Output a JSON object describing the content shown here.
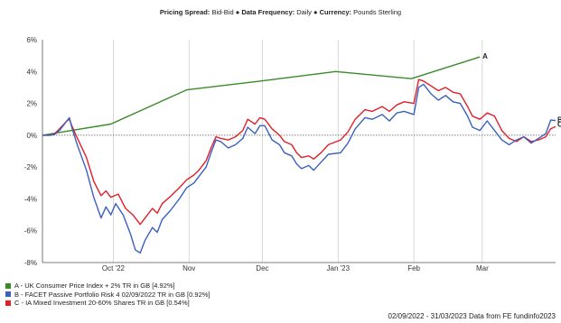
{
  "header": {
    "pricing_label": "Pricing Spread:",
    "pricing_value": "Bid-Bid",
    "sep1": "●",
    "frequency_label": "Data Frequency:",
    "frequency_value": "Daily",
    "sep2": "●",
    "currency_label": "Currency:",
    "currency_value": "Pounds Sterling"
  },
  "footer": {
    "text": "02/09/2022 - 31/03/2023 Data from FE fundinfo2023"
  },
  "colors": {
    "series_a": "#3a8a2a",
    "series_b": "#3a5fc0",
    "series_c": "#e0202a",
    "grid": "#cfcfcf"
  },
  "chart_data": {
    "type": "line",
    "x_type": "date",
    "x_range": [
      "2022-09-02",
      "2023-03-31"
    ],
    "ylim": [
      -8,
      6
    ],
    "ytick_values": [
      -8,
      -6,
      -4,
      -2,
      0,
      2,
      4,
      6
    ],
    "ytick_labels": [
      "-8%",
      "-6%",
      "-4%",
      "-2%",
      "0%",
      "2%",
      "4%",
      "6%"
    ],
    "xticks": [
      {
        "date": "2022-10-01",
        "label": "Oct '22"
      },
      {
        "date": "2022-11-01",
        "label": "Nov"
      },
      {
        "date": "2022-12-01",
        "label": "Dec"
      },
      {
        "date": "2023-01-01",
        "label": "Jan '23"
      },
      {
        "date": "2023-02-01",
        "label": "Feb"
      },
      {
        "date": "2023-03-01",
        "label": "Mar"
      }
    ],
    "grid": "vertical gridlines, dotted zero line",
    "series": [
      {
        "name": "A - UK Consumer Price Index + 2% TR in GB [4.92%]",
        "end_label": "A",
        "color_key": "series_a",
        "points": [
          [
            "2022-09-02",
            0.0
          ],
          [
            "2022-09-10",
            0.2
          ],
          [
            "2022-09-30",
            0.7
          ],
          [
            "2022-10-31",
            2.85
          ],
          [
            "2022-11-30",
            3.4
          ],
          [
            "2022-12-31",
            4.0
          ],
          [
            "2023-01-31",
            3.55
          ],
          [
            "2023-02-28",
            4.92
          ]
        ]
      },
      {
        "name": "B - FACET Passive Portfolio Risk 4 02/09/2022 TR in GB [0.92%]",
        "end_label": "B",
        "color_key": "series_b",
        "points": [
          [
            "2022-09-02",
            0.0
          ],
          [
            "2022-09-05",
            0.0
          ],
          [
            "2022-09-07",
            0.05
          ],
          [
            "2022-09-09",
            0.3
          ],
          [
            "2022-09-12",
            0.9
          ],
          [
            "2022-09-13",
            1.1
          ],
          [
            "2022-09-14",
            0.5
          ],
          [
            "2022-09-16",
            -0.5
          ],
          [
            "2022-09-20",
            -2.2
          ],
          [
            "2022-09-23",
            -3.9
          ],
          [
            "2022-09-26",
            -5.2
          ],
          [
            "2022-09-28",
            -4.5
          ],
          [
            "2022-09-30",
            -5.0
          ],
          [
            "2022-10-02",
            -4.3
          ],
          [
            "2022-10-05",
            -5.0
          ],
          [
            "2022-10-08",
            -6.2
          ],
          [
            "2022-10-10",
            -7.2
          ],
          [
            "2022-10-12",
            -7.4
          ],
          [
            "2022-10-14",
            -6.6
          ],
          [
            "2022-10-17",
            -5.8
          ],
          [
            "2022-10-19",
            -6.1
          ],
          [
            "2022-10-21",
            -5.3
          ],
          [
            "2022-10-24",
            -4.8
          ],
          [
            "2022-10-26",
            -4.4
          ],
          [
            "2022-10-28",
            -4.0
          ],
          [
            "2022-10-31",
            -3.3
          ],
          [
            "2022-11-03",
            -3.0
          ],
          [
            "2022-11-05",
            -2.6
          ],
          [
            "2022-11-08",
            -2.0
          ],
          [
            "2022-11-10",
            -1.1
          ],
          [
            "2022-11-12",
            -0.3
          ],
          [
            "2022-11-14",
            -0.4
          ],
          [
            "2022-11-17",
            -0.8
          ],
          [
            "2022-11-20",
            -0.6
          ],
          [
            "2022-11-23",
            -0.2
          ],
          [
            "2022-11-25",
            0.5
          ],
          [
            "2022-11-28",
            0.1
          ],
          [
            "2022-11-30",
            0.6
          ],
          [
            "2022-12-02",
            0.6
          ],
          [
            "2022-12-05",
            -0.3
          ],
          [
            "2022-12-08",
            -0.6
          ],
          [
            "2022-12-10",
            -1.1
          ],
          [
            "2022-12-13",
            -1.3
          ],
          [
            "2022-12-15",
            -1.8
          ],
          [
            "2022-12-17",
            -2.1
          ],
          [
            "2022-12-20",
            -1.9
          ],
          [
            "2022-12-22",
            -2.2
          ],
          [
            "2022-12-25",
            -1.7
          ],
          [
            "2022-12-28",
            -1.2
          ],
          [
            "2023-01-02",
            -1.1
          ],
          [
            "2023-01-05",
            -0.5
          ],
          [
            "2023-01-08",
            0.4
          ],
          [
            "2023-01-12",
            1.1
          ],
          [
            "2023-01-15",
            1.0
          ],
          [
            "2023-01-19",
            1.3
          ],
          [
            "2023-01-22",
            0.9
          ],
          [
            "2023-01-25",
            1.4
          ],
          [
            "2023-01-28",
            1.5
          ],
          [
            "2023-02-01",
            1.3
          ],
          [
            "2023-02-03",
            3.0
          ],
          [
            "2023-02-05",
            3.2
          ],
          [
            "2023-02-08",
            2.6
          ],
          [
            "2023-02-11",
            2.2
          ],
          [
            "2023-02-14",
            2.5
          ],
          [
            "2023-02-17",
            2.1
          ],
          [
            "2023-02-20",
            2.0
          ],
          [
            "2023-02-23",
            1.2
          ],
          [
            "2023-02-25",
            0.5
          ],
          [
            "2023-02-28",
            0.3
          ],
          [
            "2023-03-03",
            0.9
          ],
          [
            "2023-03-06",
            0.3
          ],
          [
            "2023-03-09",
            -0.3
          ],
          [
            "2023-03-12",
            -0.6
          ],
          [
            "2023-03-15",
            -0.3
          ],
          [
            "2023-03-18",
            -0.1
          ],
          [
            "2023-03-21",
            -0.5
          ],
          [
            "2023-03-24",
            -0.2
          ],
          [
            "2023-03-27",
            0.1
          ],
          [
            "2023-03-29",
            0.95
          ],
          [
            "2023-03-31",
            0.92
          ]
        ]
      },
      {
        "name": "C - IA Mixed Investment 20-60% Shares TR in GB [0.54%]",
        "end_label": "C",
        "color_key": "series_c",
        "points": [
          [
            "2022-09-02",
            0.0
          ],
          [
            "2022-09-05",
            0.0
          ],
          [
            "2022-09-07",
            0.1
          ],
          [
            "2022-09-09",
            0.4
          ],
          [
            "2022-09-12",
            0.9
          ],
          [
            "2022-09-13",
            1.0
          ],
          [
            "2022-09-14",
            0.6
          ],
          [
            "2022-09-16",
            -0.1
          ],
          [
            "2022-09-20",
            -1.4
          ],
          [
            "2022-09-23",
            -2.9
          ],
          [
            "2022-09-26",
            -3.8
          ],
          [
            "2022-09-28",
            -3.5
          ],
          [
            "2022-09-30",
            -3.9
          ],
          [
            "2022-10-03",
            -3.7
          ],
          [
            "2022-10-06",
            -4.6
          ],
          [
            "2022-10-09",
            -5.0
          ],
          [
            "2022-10-12",
            -5.6
          ],
          [
            "2022-10-14",
            -5.2
          ],
          [
            "2022-10-17",
            -4.6
          ],
          [
            "2022-10-19",
            -4.9
          ],
          [
            "2022-10-21",
            -4.3
          ],
          [
            "2022-10-24",
            -3.9
          ],
          [
            "2022-10-26",
            -3.6
          ],
          [
            "2022-10-28",
            -3.3
          ],
          [
            "2022-10-31",
            -2.8
          ],
          [
            "2022-11-03",
            -2.5
          ],
          [
            "2022-11-05",
            -2.2
          ],
          [
            "2022-11-08",
            -1.6
          ],
          [
            "2022-11-10",
            -0.8
          ],
          [
            "2022-11-12",
            -0.1
          ],
          [
            "2022-11-14",
            -0.2
          ],
          [
            "2022-11-17",
            -0.3
          ],
          [
            "2022-11-20",
            -0.1
          ],
          [
            "2022-11-23",
            0.3
          ],
          [
            "2022-11-25",
            1.0
          ],
          [
            "2022-11-28",
            0.7
          ],
          [
            "2022-11-30",
            1.1
          ],
          [
            "2022-12-02",
            1.0
          ],
          [
            "2022-12-05",
            0.4
          ],
          [
            "2022-12-08",
            0.0
          ],
          [
            "2022-12-10",
            -0.4
          ],
          [
            "2022-12-13",
            -0.6
          ],
          [
            "2022-12-15",
            -1.1
          ],
          [
            "2022-12-17",
            -1.4
          ],
          [
            "2022-12-20",
            -1.3
          ],
          [
            "2022-12-22",
            -1.5
          ],
          [
            "2022-12-25",
            -1.1
          ],
          [
            "2022-12-28",
            -0.6
          ],
          [
            "2023-01-02",
            -0.3
          ],
          [
            "2023-01-05",
            0.2
          ],
          [
            "2023-01-08",
            1.0
          ],
          [
            "2023-01-12",
            1.6
          ],
          [
            "2023-01-15",
            1.5
          ],
          [
            "2023-01-19",
            1.8
          ],
          [
            "2023-01-22",
            1.5
          ],
          [
            "2023-01-25",
            1.9
          ],
          [
            "2023-01-28",
            2.1
          ],
          [
            "2023-02-01",
            2.0
          ],
          [
            "2023-02-03",
            3.5
          ],
          [
            "2023-02-05",
            3.4
          ],
          [
            "2023-02-08",
            3.1
          ],
          [
            "2023-02-11",
            2.8
          ],
          [
            "2023-02-14",
            3.0
          ],
          [
            "2023-02-17",
            2.7
          ],
          [
            "2023-02-20",
            2.6
          ],
          [
            "2023-02-23",
            1.8
          ],
          [
            "2023-02-25",
            1.2
          ],
          [
            "2023-02-28",
            1.0
          ],
          [
            "2023-03-03",
            1.4
          ],
          [
            "2023-03-06",
            1.2
          ],
          [
            "2023-03-09",
            0.3
          ],
          [
            "2023-03-12",
            -0.2
          ],
          [
            "2023-03-15",
            -0.4
          ],
          [
            "2023-03-18",
            -0.1
          ],
          [
            "2023-03-21",
            -0.4
          ],
          [
            "2023-03-24",
            -0.3
          ],
          [
            "2023-03-27",
            -0.1
          ],
          [
            "2023-03-29",
            0.4
          ],
          [
            "2023-03-31",
            0.54
          ]
        ]
      }
    ]
  }
}
